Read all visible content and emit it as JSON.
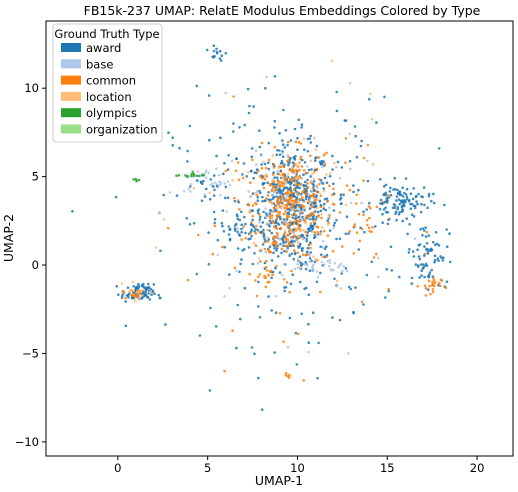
{
  "chart_data": {
    "type": "scatter",
    "title": "FB15k-237 UMAP: RelatE Modulus Embeddings Colored by Type",
    "xlabel": "UMAP-1",
    "ylabel": "UMAP-2",
    "xlim": [
      -4.0,
      22.0
    ],
    "ylim": [
      -10.8,
      13.8
    ],
    "x_ticks": [
      0,
      5,
      10,
      15,
      20
    ],
    "y_ticks": [
      -10,
      -5,
      0,
      5,
      10
    ],
    "grid": false,
    "legend": {
      "title": "Ground Truth Type",
      "placement": "top-left",
      "entries": [
        {
          "label": "award",
          "color": "#1f77b4"
        },
        {
          "label": "base",
          "color": "#aec7e8"
        },
        {
          "label": "common",
          "color": "#ff7f0e"
        },
        {
          "label": "location",
          "color": "#ffbb78"
        },
        {
          "label": "olympics",
          "color": "#2ca02c"
        },
        {
          "label": "organization",
          "color": "#98df8a"
        }
      ]
    },
    "clusters": [
      {
        "series": "award",
        "x": 9.7,
        "y": 3.2,
        "sx": 1.1,
        "sy": 1.7,
        "n": 420
      },
      {
        "series": "common",
        "x": 9.6,
        "y": 3.3,
        "sx": 1.0,
        "sy": 1.5,
        "n": 300
      },
      {
        "series": "location",
        "x": 9.6,
        "y": 3.4,
        "sx": 1.2,
        "sy": 1.6,
        "n": 70
      },
      {
        "series": "base",
        "x": 9.7,
        "y": 3.2,
        "sx": 1.2,
        "sy": 1.7,
        "n": 40
      },
      {
        "series": "award",
        "x": 9.5,
        "y": 2.5,
        "sx": 3.2,
        "sy": 3.4,
        "n": 300
      },
      {
        "series": "common",
        "x": 9.5,
        "y": 2.8,
        "sx": 2.8,
        "sy": 3.0,
        "n": 90
      },
      {
        "series": "base",
        "x": 9.5,
        "y": 2.5,
        "sx": 3.0,
        "sy": 3.0,
        "n": 50
      },
      {
        "series": "location",
        "x": 9.5,
        "y": 2.8,
        "sx": 2.8,
        "sy": 3.0,
        "n": 40
      },
      {
        "series": "award",
        "x": 15.8,
        "y": 3.6,
        "sx": 0.8,
        "sy": 0.5,
        "n": 110
      },
      {
        "series": "award",
        "x": 17.2,
        "y": 0.7,
        "sx": 0.6,
        "sy": 0.9,
        "n": 70
      },
      {
        "series": "common",
        "x": 17.4,
        "y": -1.2,
        "sx": 0.3,
        "sy": 0.3,
        "n": 22
      },
      {
        "series": "award",
        "x": 1.1,
        "y": -1.6,
        "sx": 0.45,
        "sy": 0.25,
        "n": 85
      },
      {
        "series": "common",
        "x": 1.0,
        "y": -1.6,
        "sx": 0.35,
        "sy": 0.2,
        "n": 14
      },
      {
        "series": "location",
        "x": 1.2,
        "y": -1.5,
        "sx": 0.4,
        "sy": 0.25,
        "n": 12
      },
      {
        "series": "base",
        "x": 4.9,
        "y": 4.7,
        "sx": 0.6,
        "sy": 0.4,
        "n": 28
      },
      {
        "series": "award",
        "x": 4.9,
        "y": 4.6,
        "sx": 0.6,
        "sy": 0.4,
        "n": 14
      },
      {
        "series": "olympics",
        "x": 4.0,
        "y": 5.1,
        "sx": 0.4,
        "sy": 0.08,
        "n": 14
      },
      {
        "series": "olympics",
        "x": 1.0,
        "y": 4.8,
        "sx": 0.12,
        "sy": 0.05,
        "n": 5
      },
      {
        "series": "base",
        "x": 11.6,
        "y": -0.1,
        "sx": 0.9,
        "sy": 0.25,
        "n": 28
      },
      {
        "series": "common",
        "x": 13.7,
        "y": 2.7,
        "sx": 0.5,
        "sy": 1.2,
        "n": 18
      },
      {
        "series": "award",
        "x": 5.5,
        "y": 11.9,
        "sx": 0.3,
        "sy": 0.3,
        "n": 14
      },
      {
        "series": "award",
        "x": 6.8,
        "y": 2.1,
        "sx": 0.5,
        "sy": 0.5,
        "n": 25
      },
      {
        "series": "common",
        "x": 8.4,
        "y": -0.7,
        "sx": 0.4,
        "sy": 0.5,
        "n": 15
      },
      {
        "series": "common",
        "x": 9.5,
        "y": -6.2,
        "sx": 0.3,
        "sy": 0.15,
        "n": 6
      }
    ]
  }
}
